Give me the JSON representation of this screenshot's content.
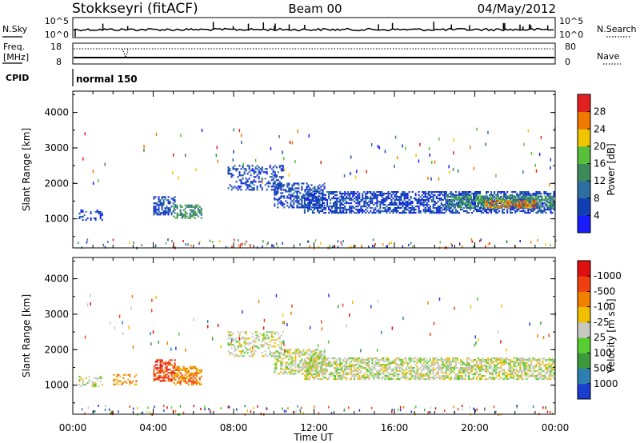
{
  "header": {
    "station": "Stokkseyri (fitACF)",
    "beam": "Beam 00",
    "date": "04/May/2012"
  },
  "status_panels": {
    "nsky_label": "N.Sky",
    "nsky_ticks": [
      "10^5",
      "10^0"
    ],
    "nsearch_label": "N.Search",
    "nsearch_ticks": [
      "10^5",
      "10^0"
    ],
    "freq_label_1": "Freq.",
    "freq_label_2": "[MHz]",
    "freq_ticks": [
      "18",
      "8"
    ],
    "nave_label": "Nave",
    "nave_ticks": [
      "80",
      "0"
    ],
    "cpid_label": "CPID",
    "cpid_value": "normal 150"
  },
  "chart_data": [
    {
      "type": "heatmap",
      "name": "power-panel",
      "ylabel": "Slant Range [km]",
      "yticks": [
        "1000",
        "2000",
        "3000",
        "4000"
      ],
      "ylim": [
        180,
        4600
      ],
      "xlim": [
        0,
        24
      ],
      "colorbar": {
        "label": "Power [dB]",
        "ticks": [
          "4",
          "8",
          "12",
          "16",
          "20",
          "24",
          "28"
        ],
        "colors": [
          "#1a1aff",
          "#0f3fb3",
          "#2c6fa0",
          "#3c8a5a",
          "#58c03a",
          "#f0c400",
          "#f07a00",
          "#e22020"
        ]
      },
      "bands": [
        {
          "t0": 0.3,
          "t1": 1.5,
          "r0": 950,
          "r1": 1250,
          "density": 0.35,
          "level": 1
        },
        {
          "t0": 4.0,
          "t1": 5.1,
          "r0": 1100,
          "r1": 1600,
          "density": 0.5,
          "level": 1
        },
        {
          "t0": 5.0,
          "t1": 6.4,
          "r0": 1000,
          "r1": 1400,
          "density": 0.5,
          "level": 3
        },
        {
          "t0": 7.7,
          "t1": 10.5,
          "r0": 1800,
          "r1": 2500,
          "density": 0.35,
          "level": 1
        },
        {
          "t0": 10.0,
          "t1": 12.5,
          "r0": 1300,
          "r1": 2000,
          "density": 0.5,
          "level": 1
        },
        {
          "t0": 11.5,
          "t1": 23.9,
          "r0": 1150,
          "r1": 1750,
          "density": 0.6,
          "level": 1
        },
        {
          "t0": 18.5,
          "t1": 23.9,
          "r0": 1300,
          "r1": 1650,
          "density": 0.6,
          "level": 3
        },
        {
          "t0": 20.5,
          "t1": 23.0,
          "r0": 1300,
          "r1": 1500,
          "density": 0.5,
          "level": 6
        }
      ]
    },
    {
      "type": "heatmap",
      "name": "velocity-panel",
      "ylabel": "Slant Range [km]",
      "yticks": [
        "1000",
        "2000",
        "3000",
        "4000"
      ],
      "ylim": [
        180,
        4600
      ],
      "xlim": [
        0,
        24
      ],
      "xlabel": "Time UT",
      "xticks": [
        "00:00",
        "04:00",
        "08:00",
        "12:00",
        "16:00",
        "20:00",
        "00:00"
      ],
      "colorbar": {
        "label": "Velocity [m s⁻¹]",
        "ticks": [
          "1000",
          "500",
          "100",
          "25",
          "-25",
          "-100",
          "-500",
          "-1000"
        ],
        "colors": [
          "#1a3fd0",
          "#2c7fb0",
          "#3c9a3c",
          "#58cc30",
          "#c8c8c0",
          "#f0c000",
          "#f08000",
          "#f04010",
          "#e01010"
        ]
      },
      "bands": [
        {
          "t0": 0.3,
          "t1": 1.5,
          "r0": 950,
          "r1": 1250,
          "density": 0.35,
          "level": 4
        },
        {
          "t0": 2.0,
          "t1": 3.2,
          "r0": 1000,
          "r1": 1300,
          "density": 0.4,
          "level": 6
        },
        {
          "t0": 4.0,
          "t1": 5.1,
          "r0": 1100,
          "r1": 1700,
          "density": 0.55,
          "level": 7
        },
        {
          "t0": 5.0,
          "t1": 6.4,
          "r0": 1000,
          "r1": 1500,
          "density": 0.55,
          "level": 6
        },
        {
          "t0": 7.7,
          "t1": 10.5,
          "r0": 1800,
          "r1": 2500,
          "density": 0.35,
          "level": 4
        },
        {
          "t0": 10.0,
          "t1": 12.5,
          "r0": 1300,
          "r1": 2000,
          "density": 0.5,
          "level": 4
        },
        {
          "t0": 11.5,
          "t1": 23.9,
          "r0": 1150,
          "r1": 1750,
          "density": 0.6,
          "level": 4
        }
      ]
    }
  ]
}
